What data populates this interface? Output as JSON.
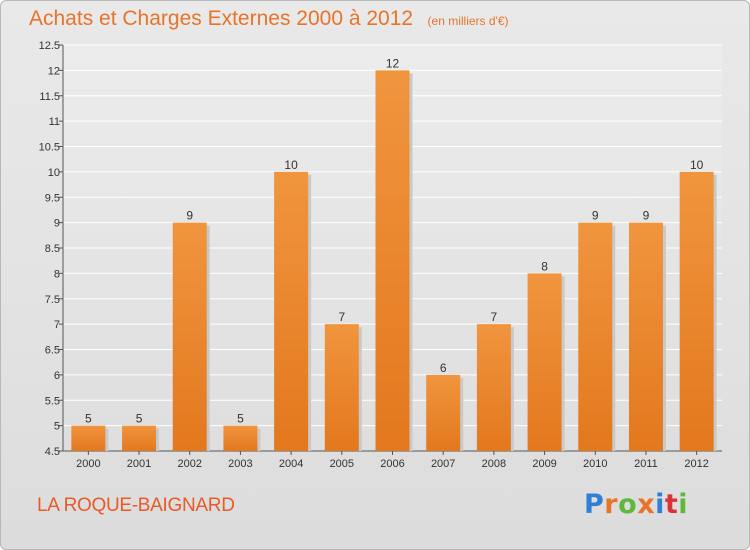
{
  "header": {
    "title": "Achats et Charges Externes 2000 à 2012",
    "subtitle": "(en milliers d'€)"
  },
  "footer": {
    "commune": "LA ROQUE-BAIGNARD",
    "brand": "Proxiti",
    "brand_colors": [
      "#2f7fd6",
      "#e8742a",
      "#5fb83a",
      "#e8742a",
      "#2f7fd6",
      "#d9323a",
      "#5fb83a"
    ]
  },
  "chart_data": {
    "type": "bar",
    "categories": [
      "2000",
      "2001",
      "2002",
      "2003",
      "2004",
      "2005",
      "2006",
      "2007",
      "2008",
      "2009",
      "2010",
      "2011",
      "2012"
    ],
    "values": [
      5,
      5,
      9,
      5,
      10,
      7,
      12,
      6,
      7,
      8,
      9,
      9,
      10
    ],
    "data_labels": [
      "5",
      "5",
      "9",
      "5",
      "10",
      "7",
      "12",
      "6",
      "7",
      "8",
      "9",
      "9",
      "10"
    ],
    "yticks": [
      "4.5",
      "5",
      "5.5",
      "6",
      "6.5",
      "7",
      "7.5",
      "8",
      "8.5",
      "9",
      "9.5",
      "10",
      "10.5",
      "11",
      "11.5",
      "12",
      "12.5"
    ],
    "ylim": [
      4.5,
      12.5
    ],
    "grid": true,
    "bar_color": "#f0953e",
    "bar_color_dark": "#e3781e"
  }
}
